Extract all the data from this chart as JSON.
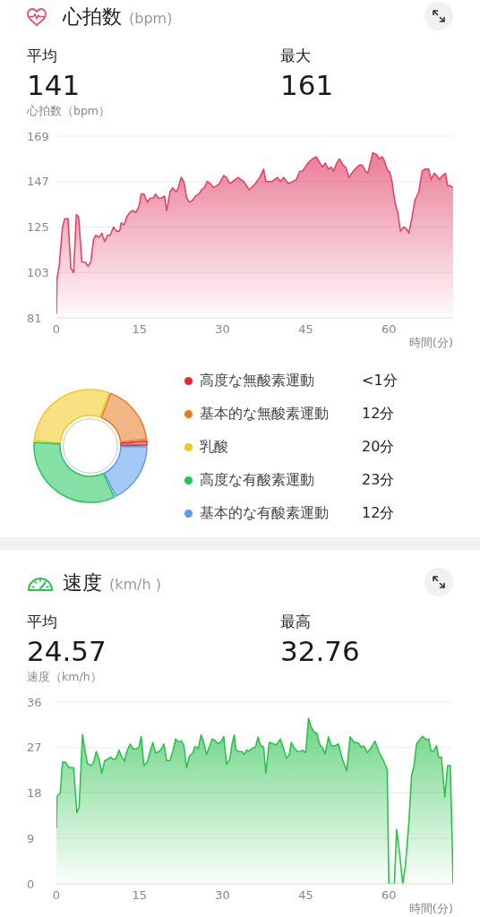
{
  "chart_data": [
    {
      "type": "area",
      "title": "心拍数",
      "subtitle": "(bpm)",
      "ylabel": "心拍数（bpm）",
      "xlabel": "時間(分)",
      "annotations": [
        "平均",
        "141",
        "最大",
        "161"
      ],
      "x": [
        0,
        0.1,
        0.5,
        1.1,
        1.5,
        2.1,
        2.6,
        3.1,
        3.6,
        4.0,
        4.6,
        5.2,
        5.7,
        6.2,
        6.7,
        7.1,
        7.7,
        8.2,
        8.7,
        9.2,
        9.7,
        10.3,
        10.8,
        11.4,
        11.7,
        12.2,
        12.7,
        13.2,
        13.8,
        14.3,
        14.9,
        15.3,
        15.8,
        16.4,
        16.9,
        17.5,
        17.9,
        18.4,
        19.0,
        19.5,
        19.9,
        20.5,
        21.0,
        21.6,
        22.0,
        22.5,
        23.0,
        23.5,
        24.0,
        24.6,
        25.1,
        25.7,
        26.2,
        26.7,
        27.2,
        27.8,
        28.3,
        28.9,
        29.4,
        30.2,
        30.7,
        31.3,
        31.8,
        32.8,
        33.8,
        34.8,
        35.9,
        36.7,
        37.4,
        37.8,
        38.9,
        39.9,
        40.4,
        41.0,
        41.9,
        42.7,
        43.3,
        43.9,
        44.4,
        45.4,
        46.2,
        46.9,
        48.0,
        48.5,
        49.1,
        49.6,
        50.0,
        50.6,
        51.1,
        51.7,
        52.2,
        52.8,
        53.3,
        53.9,
        54.7,
        55.2,
        55.8,
        56.2,
        57.1,
        57.8,
        58.3,
        58.8,
        59.2,
        59.8,
        60.1,
        60.5,
        61.1,
        61.6,
        62.1,
        62.7,
        63.2,
        63.6,
        64.2,
        64.7,
        65.4,
        66.0,
        66.5,
        67.2,
        67.6,
        68.2,
        68.6,
        69.1,
        69.7,
        70.2,
        70.6,
        71.1,
        71.6
      ],
      "series": [
        {
          "color": "#e0456a",
          "values": [
            83,
            100,
            106,
            125,
            129,
            129,
            105,
            103,
            131,
            130,
            108,
            108,
            106,
            108,
            119,
            121,
            120,
            122,
            118,
            121,
            121,
            125,
            123,
            123,
            127,
            126,
            130,
            132,
            133,
            132,
            135,
            141,
            141,
            137,
            139,
            139,
            141,
            139,
            139,
            140,
            133,
            142,
            144,
            142,
            144,
            149,
            147,
            139,
            137,
            138,
            140,
            141,
            143,
            144,
            147,
            146,
            144,
            145,
            146,
            150,
            149,
            146,
            147,
            149,
            147,
            143,
            146,
            149,
            153,
            147,
            147,
            149,
            147,
            149,
            146,
            147,
            148,
            152,
            152,
            156,
            158,
            159,
            154,
            156,
            153,
            154,
            152,
            156,
            158,
            155,
            154,
            149,
            151,
            153,
            155,
            155,
            152,
            151,
            161,
            160,
            158,
            159,
            157,
            152,
            152,
            148,
            137,
            132,
            123,
            125,
            124,
            122,
            130,
            138,
            142,
            152,
            153,
            153,
            148,
            151,
            150,
            148,
            150,
            151,
            145,
            145,
            144
          ]
        }
      ],
      "xlim": [
        0,
        71.6
      ],
      "xticks": [
        0,
        15,
        30,
        45,
        60
      ],
      "ylim": [
        81,
        169
      ],
      "yticks": [
        81,
        103,
        125,
        147,
        169
      ],
      "grid": "y"
    },
    {
      "type": "donut",
      "categories": [
        "高度な無酸素運動",
        "基本的な無酸素運動",
        "乳酸",
        "高度な有酸素運動",
        "基本的な有酸素運動"
      ],
      "values": [
        0.8,
        12,
        20,
        23,
        12
      ],
      "colors": [
        "#e8262a",
        "#e57a1e",
        "#f2c81e",
        "#22c55a",
        "#5b9df0"
      ],
      "value_labels": [
        "<1分",
        "12分",
        "20分",
        "23分",
        "12分"
      ],
      "legend": "right"
    },
    {
      "type": "area",
      "title": "速度",
      "subtitle": "(km/h )",
      "ylabel": "速度（km/h）",
      "xlabel": "時間(分)",
      "annotations": [
        "平均",
        "24.57",
        "最高",
        "32.76"
      ],
      "x": [
        0,
        0.1,
        0.7,
        1.1,
        1.6,
        2.2,
        2.6,
        3.1,
        3.7,
        4.1,
        4.7,
        5.2,
        5.6,
        6.3,
        6.7,
        7.2,
        7.7,
        8.2,
        8.7,
        9.3,
        9.8,
        10.3,
        10.8,
        11.3,
        11.7,
        12.3,
        12.7,
        13.3,
        13.8,
        14.4,
        14.9,
        15.3,
        15.8,
        16.4,
        16.9,
        17.4,
        17.9,
        18.5,
        19.0,
        19.4,
        19.9,
        20.5,
        21.0,
        21.5,
        22.0,
        22.6,
        23.0,
        23.5,
        24.0,
        24.6,
        25.0,
        25.6,
        26.1,
        26.6,
        27.1,
        27.6,
        28.1,
        28.7,
        29.2,
        29.7,
        30.2,
        30.7,
        31.3,
        31.7,
        32.1,
        32.4,
        32.9,
        33.5,
        33.9,
        34.3,
        34.8,
        35.4,
        35.9,
        36.4,
        36.8,
        37.4,
        37.8,
        38.4,
        39.0,
        39.7,
        40.4,
        41.0,
        41.5,
        42.0,
        42.4,
        43.0,
        43.5,
        44.1,
        44.4,
        45.0,
        45.5,
        46.0,
        46.5,
        47.0,
        47.5,
        48.1,
        48.5,
        49.1,
        49.6,
        50.2,
        50.9,
        51.7,
        52.4,
        53.0,
        53.7,
        54.5,
        55.0,
        55.5,
        56.1,
        56.7,
        57.5,
        58.2,
        58.9,
        59.4,
        59.7,
        60.0,
        61.0,
        61.4,
        62.0,
        62.5,
        63.0,
        63.6,
        64.1,
        64.5,
        65.0,
        65.6,
        66.1,
        66.7,
        67.2,
        67.6,
        68.1,
        68.6,
        69.0,
        69.5,
        70.1,
        70.6,
        71.1,
        71.6
      ],
      "series": [
        {
          "color": "#2dc24f",
          "values": [
            11,
            17.3,
            18,
            24.1,
            24.1,
            23.1,
            23,
            23,
            14.1,
            15.2,
            29.5,
            26.2,
            23.8,
            23.4,
            24.1,
            26.2,
            24.6,
            21.9,
            24.4,
            24.7,
            25.1,
            24.6,
            24.9,
            26.5,
            25.3,
            24.3,
            26.2,
            27.7,
            26.8,
            26.7,
            27.1,
            29.2,
            23.4,
            24.1,
            26.2,
            28,
            25.9,
            26.2,
            26.8,
            27.7,
            24.4,
            24.4,
            26.2,
            28.7,
            28.1,
            28.3,
            27.4,
            23,
            25.3,
            25.9,
            27.2,
            26.8,
            29.5,
            28,
            25.6,
            27.1,
            28.7,
            28.3,
            27.8,
            28.1,
            29.2,
            23.7,
            24.7,
            27.7,
            29.5,
            26.5,
            26.2,
            26.2,
            25.6,
            26.5,
            26.3,
            26.9,
            27,
            29.1,
            27.5,
            27,
            21.9,
            28,
            27.8,
            27.5,
            28.7,
            26.8,
            24.9,
            25.5,
            28,
            26.8,
            26.2,
            26.2,
            26.5,
            26,
            32.8,
            31,
            30.1,
            29.8,
            27.7,
            26.8,
            25.7,
            29.1,
            27.4,
            27.3,
            27.7,
            24.4,
            22.4,
            29.1,
            28.1,
            27.9,
            27.1,
            27.3,
            26,
            26.8,
            28.3,
            26.1,
            24.7,
            23.4,
            22.7,
            0,
            0,
            10.8,
            5.5,
            0,
            3.7,
            12,
            21.5,
            23.1,
            27.7,
            28.6,
            29.2,
            28.6,
            28.7,
            26.3,
            26.3,
            27.4,
            25,
            25.1,
            17.2,
            23.4,
            23.4,
            0
          ]
        }
      ],
      "xlim": [
        0,
        71.6
      ],
      "xticks": [
        0,
        15,
        30,
        45,
        60
      ],
      "ylim": [
        0,
        36
      ],
      "yticks": [
        0,
        9,
        18,
        27,
        36
      ],
      "grid": "y"
    }
  ]
}
